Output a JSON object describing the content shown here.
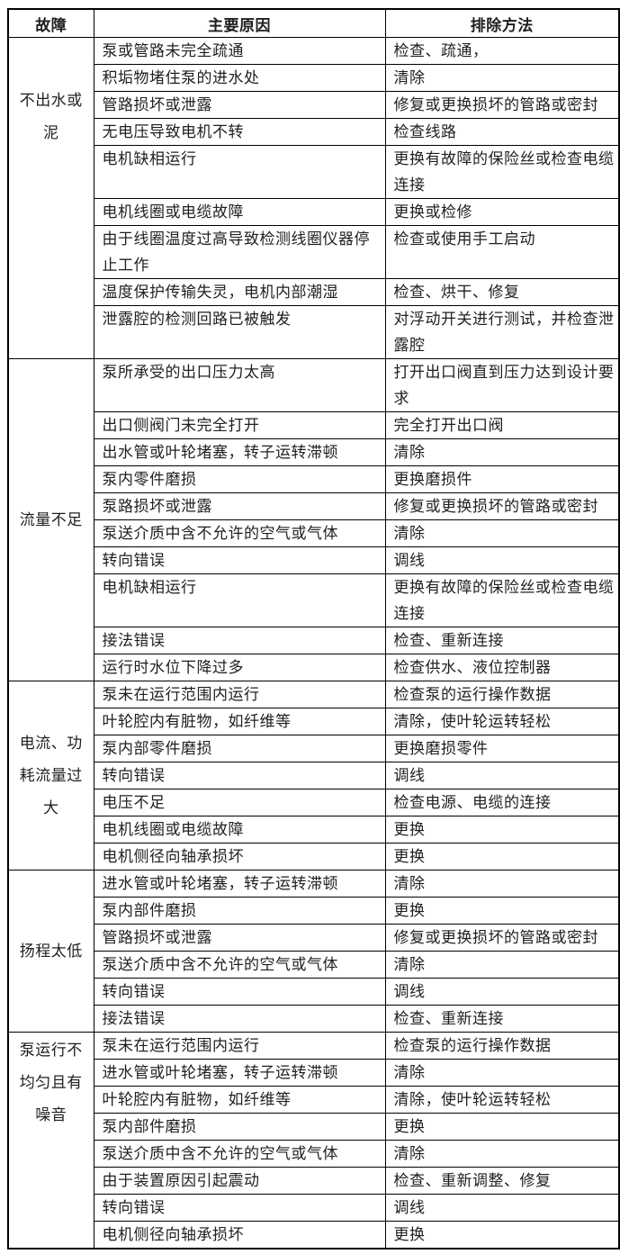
{
  "colors": {
    "background": "#ffffff",
    "border": "#000000",
    "text": "#1f1f1f"
  },
  "table": {
    "headers": [
      "故障",
      "主要原因",
      "排除方法"
    ],
    "groups": [
      {
        "fault": "不出水或泥",
        "rows": [
          {
            "cause": "泵或管路未完全疏通",
            "remedy": "检查、疏通，"
          },
          {
            "cause": "积垢物堵住泵的进水处",
            "remedy": "清除"
          },
          {
            "cause": "管路损坏或泄露",
            "remedy": "修复或更换损坏的管路或密封"
          },
          {
            "cause": "无电压导致电机不转",
            "remedy": "检查线路"
          },
          {
            "cause": "电机缺相运行",
            "remedy": "更换有故障的保险丝或检查电缆连接"
          },
          {
            "cause": "电机线圈或电缆故障",
            "remedy": "更换或检修"
          },
          {
            "cause": "由于线圈温度过高导致检测线圈仪器停止工作",
            "remedy": "检查或使用手工启动"
          },
          {
            "cause": "温度保护传输失灵，电机内部潮湿",
            "remedy": "检查、烘干、修复"
          },
          {
            "cause": "泄露腔的检测回路已被触发",
            "remedy": "对浮动开关进行测试，并检查泄露腔"
          }
        ]
      },
      {
        "fault": "流量不足",
        "rows": [
          {
            "cause": "泵所承受的出口压力太高",
            "remedy": "打开出口阀直到压力达到设计要求"
          },
          {
            "cause": "出口侧阀门未完全打开",
            "remedy": "完全打开出口阀"
          },
          {
            "cause": "出水管或叶轮堵塞，转子运转滞顿",
            "remedy": "清除"
          },
          {
            "cause": "泵内零件磨损",
            "remedy": "更换磨损件"
          },
          {
            "cause": "泵路损坏或泄露",
            "remedy": "修复或更换损坏的管路或密封"
          },
          {
            "cause": "泵送介质中含不允许的空气或气体",
            "remedy": "清除"
          },
          {
            "cause": "转向错误",
            "remedy": "调线"
          },
          {
            "cause": "电机缺相运行",
            "remedy": "更换有故障的保险丝或检查电缆连接"
          },
          {
            "cause": "接法错误",
            "remedy": "检查、重新连接"
          },
          {
            "cause": "运行时水位下降过多",
            "remedy": "检查供水、液位控制器"
          }
        ]
      },
      {
        "fault": "电流、功耗流量过大",
        "rows": [
          {
            "cause": "泵未在运行范围内运行",
            "remedy": "检查泵的运行操作数据"
          },
          {
            "cause": "叶轮腔内有脏物，如纤维等",
            "remedy": "清除，使叶轮运转轻松"
          },
          {
            "cause": "泵内部零件磨损",
            "remedy": "更换磨损零件"
          },
          {
            "cause": "转向错误",
            "remedy": "调线"
          },
          {
            "cause": "电压不足",
            "remedy": "检查电源、电缆的连接"
          },
          {
            "cause": "电机线圈或电缆故障",
            "remedy": "更换"
          },
          {
            "cause": "电机侧径向轴承损坏",
            "remedy": "更换"
          }
        ]
      },
      {
        "fault": "扬程太低",
        "rows": [
          {
            "cause": "进水管或叶轮堵塞，转子运转滞顿",
            "remedy": "清除"
          },
          {
            "cause": "泵内部件磨损",
            "remedy": "更换"
          },
          {
            "cause": "管路损坏或泄露",
            "remedy": "修复或更换损坏的管路或密封"
          },
          {
            "cause": "泵送介质中含不允许的空气或气体",
            "remedy": "清除"
          },
          {
            "cause": "转向错误",
            "remedy": "调线"
          },
          {
            "cause": "接法错误",
            "remedy": "检查、重新连接"
          }
        ]
      },
      {
        "fault": "泵运行不均匀且有噪音",
        "rows": [
          {
            "cause": "泵未在运行范围内运行",
            "remedy": "检查泵的运行操作数据"
          },
          {
            "cause": "进水管或叶轮堵塞，转子运转滞顿",
            "remedy": "清除"
          },
          {
            "cause": "叶轮腔内有脏物，如纤维等",
            "remedy": "清除，使叶轮运转轻松"
          },
          {
            "cause": "泵内部件磨损",
            "remedy": "更换"
          },
          {
            "cause": "泵送介质中含不允许的空气或气体",
            "remedy": "清除"
          },
          {
            "cause": "由于装置原因引起震动",
            "remedy": "检查、重新调整、修复"
          },
          {
            "cause": "转向错误",
            "remedy": "调线"
          },
          {
            "cause": "电机侧径向轴承损坏",
            "remedy": "更换"
          }
        ]
      }
    ]
  }
}
